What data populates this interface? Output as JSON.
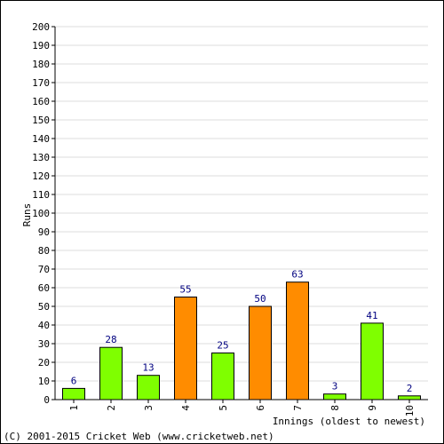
{
  "chart_data": {
    "type": "bar",
    "categories": [
      "1",
      "2",
      "3",
      "4",
      "5",
      "6",
      "7",
      "8",
      "9",
      "10"
    ],
    "values": [
      6,
      28,
      13,
      55,
      25,
      50,
      63,
      3,
      41,
      2
    ],
    "bar_colors": [
      "#7fff00",
      "#7fff00",
      "#7fff00",
      "#ff8c00",
      "#7fff00",
      "#ff8c00",
      "#ff8c00",
      "#7fff00",
      "#7fff00",
      "#7fff00"
    ],
    "data_labels": [
      "6",
      "28",
      "13",
      "55",
      "25",
      "50",
      "63",
      "3",
      "41",
      "2"
    ],
    "yticks": [
      "0",
      "10",
      "20",
      "30",
      "40",
      "50",
      "60",
      "70",
      "80",
      "90",
      "100",
      "110",
      "120",
      "130",
      "140",
      "150",
      "160",
      "170",
      "180",
      "190",
      "200"
    ],
    "ylim": [
      0,
      200
    ],
    "ylabel": "Runs",
    "xlabel": "Innings (oldest to newest)",
    "grid": true,
    "grid_color": "#dddddd",
    "label_color": "#000080"
  },
  "footer": "(C) 2001-2015 Cricket Web (www.cricketweb.net)"
}
